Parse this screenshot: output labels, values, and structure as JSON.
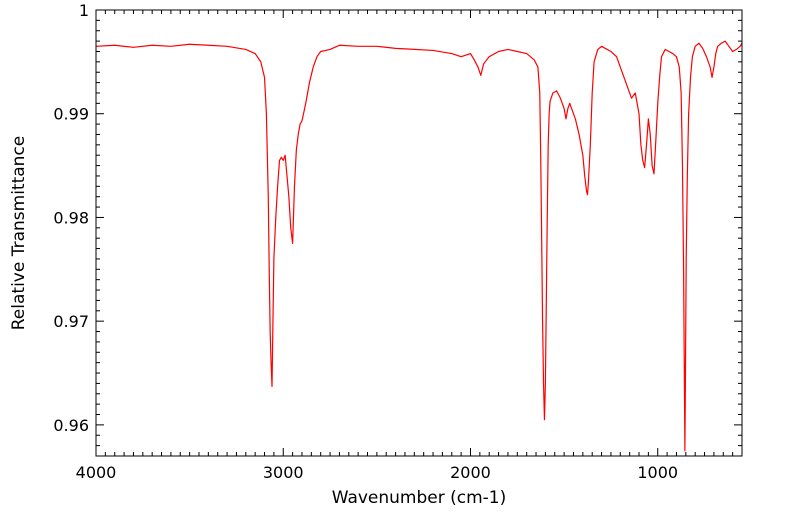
{
  "chart_data": {
    "type": "line",
    "title": "",
    "xlabel": "Wavenumber (cm-1)",
    "ylabel": "Relative Transmittance",
    "xlim": [
      4000,
      550
    ],
    "ylim": [
      0.957,
      1.0
    ],
    "x_reversed": true,
    "grid": false,
    "legend": "none",
    "line_color": "#ff0000",
    "x_ticks": [
      {
        "value": 4000,
        "label": "4000"
      },
      {
        "value": 3000,
        "label": "3000"
      },
      {
        "value": 2000,
        "label": "2000"
      },
      {
        "value": 1000,
        "label": "1000"
      }
    ],
    "y_ticks": [
      {
        "value": 1.0,
        "label": "1"
      },
      {
        "value": 0.99,
        "label": "0.99"
      },
      {
        "value": 0.98,
        "label": "0.98"
      },
      {
        "value": 0.97,
        "label": "0.97"
      },
      {
        "value": 0.96,
        "label": "0.96"
      }
    ],
    "series": [
      {
        "color": "#ff0000",
        "points": [
          [
            4000,
            0.9965
          ],
          [
            3900,
            0.9966
          ],
          [
            3800,
            0.9964
          ],
          [
            3700,
            0.9966
          ],
          [
            3600,
            0.9965
          ],
          [
            3500,
            0.9967
          ],
          [
            3400,
            0.9966
          ],
          [
            3300,
            0.9965
          ],
          [
            3200,
            0.9962
          ],
          [
            3150,
            0.9958
          ],
          [
            3120,
            0.995
          ],
          [
            3100,
            0.9935
          ],
          [
            3090,
            0.99
          ],
          [
            3080,
            0.982
          ],
          [
            3075,
            0.975
          ],
          [
            3070,
            0.969
          ],
          [
            3065,
            0.966
          ],
          [
            3060,
            0.9637
          ],
          [
            3055,
            0.97
          ],
          [
            3050,
            0.976
          ],
          [
            3040,
            0.98
          ],
          [
            3030,
            0.983
          ],
          [
            3020,
            0.9855
          ],
          [
            3010,
            0.9858
          ],
          [
            3000,
            0.9855
          ],
          [
            2990,
            0.986
          ],
          [
            2980,
            0.984
          ],
          [
            2970,
            0.982
          ],
          [
            2960,
            0.979
          ],
          [
            2950,
            0.9775
          ],
          [
            2940,
            0.983
          ],
          [
            2930,
            0.9865
          ],
          [
            2920,
            0.988
          ],
          [
            2910,
            0.989
          ],
          [
            2900,
            0.9893
          ],
          [
            2880,
            0.991
          ],
          [
            2860,
            0.993
          ],
          [
            2840,
            0.9945
          ],
          [
            2820,
            0.9955
          ],
          [
            2800,
            0.996
          ],
          [
            2750,
            0.9962
          ],
          [
            2700,
            0.9966
          ],
          [
            2600,
            0.9965
          ],
          [
            2500,
            0.9965
          ],
          [
            2400,
            0.9963
          ],
          [
            2300,
            0.9962
          ],
          [
            2200,
            0.9961
          ],
          [
            2100,
            0.9958
          ],
          [
            2050,
            0.9955
          ],
          [
            2000,
            0.9958
          ],
          [
            1980,
            0.9952
          ],
          [
            1960,
            0.9945
          ],
          [
            1945,
            0.9937
          ],
          [
            1930,
            0.9948
          ],
          [
            1900,
            0.9955
          ],
          [
            1850,
            0.996
          ],
          [
            1800,
            0.9962
          ],
          [
            1750,
            0.996
          ],
          [
            1700,
            0.9958
          ],
          [
            1660,
            0.9952
          ],
          [
            1640,
            0.9945
          ],
          [
            1630,
            0.992
          ],
          [
            1625,
            0.986
          ],
          [
            1620,
            0.978
          ],
          [
            1615,
            0.97
          ],
          [
            1610,
            0.964
          ],
          [
            1605,
            0.9605
          ],
          [
            1600,
            0.964
          ],
          [
            1595,
            0.972
          ],
          [
            1590,
            0.98
          ],
          [
            1585,
            0.987
          ],
          [
            1580,
            0.99
          ],
          [
            1575,
            0.9912
          ],
          [
            1560,
            0.992
          ],
          [
            1540,
            0.9922
          ],
          [
            1520,
            0.9915
          ],
          [
            1500,
            0.9905
          ],
          [
            1490,
            0.9895
          ],
          [
            1480,
            0.9905
          ],
          [
            1470,
            0.991
          ],
          [
            1460,
            0.9905
          ],
          [
            1440,
            0.9895
          ],
          [
            1420,
            0.988
          ],
          [
            1400,
            0.986
          ],
          [
            1390,
            0.984
          ],
          [
            1380,
            0.9825
          ],
          [
            1375,
            0.9822
          ],
          [
            1370,
            0.9835
          ],
          [
            1360,
            0.987
          ],
          [
            1350,
            0.992
          ],
          [
            1340,
            0.995
          ],
          [
            1320,
            0.9962
          ],
          [
            1300,
            0.9965
          ],
          [
            1250,
            0.996
          ],
          [
            1220,
            0.9955
          ],
          [
            1200,
            0.9945
          ],
          [
            1180,
            0.9935
          ],
          [
            1160,
            0.9925
          ],
          [
            1140,
            0.9915
          ],
          [
            1120,
            0.992
          ],
          [
            1100,
            0.99
          ],
          [
            1090,
            0.987
          ],
          [
            1080,
            0.9855
          ],
          [
            1070,
            0.9848
          ],
          [
            1060,
            0.987
          ],
          [
            1050,
            0.9895
          ],
          [
            1040,
            0.988
          ],
          [
            1030,
            0.985
          ],
          [
            1020,
            0.9842
          ],
          [
            1010,
            0.9875
          ],
          [
            1000,
            0.991
          ],
          [
            990,
            0.9935
          ],
          [
            980,
            0.9955
          ],
          [
            960,
            0.9962
          ],
          [
            940,
            0.996
          ],
          [
            920,
            0.9958
          ],
          [
            900,
            0.9955
          ],
          [
            885,
            0.9945
          ],
          [
            875,
            0.992
          ],
          [
            868,
            0.985
          ],
          [
            862,
            0.975
          ],
          [
            858,
            0.965
          ],
          [
            855,
            0.9575
          ],
          [
            852,
            0.965
          ],
          [
            848,
            0.976
          ],
          [
            842,
            0.984
          ],
          [
            835,
            0.99
          ],
          [
            825,
            0.9935
          ],
          [
            815,
            0.9955
          ],
          [
            800,
            0.9965
          ],
          [
            780,
            0.9968
          ],
          [
            760,
            0.9963
          ],
          [
            740,
            0.9955
          ],
          [
            720,
            0.9945
          ],
          [
            710,
            0.9935
          ],
          [
            700,
            0.9945
          ],
          [
            690,
            0.9958
          ],
          [
            680,
            0.9965
          ],
          [
            660,
            0.9968
          ],
          [
            640,
            0.997
          ],
          [
            620,
            0.9965
          ],
          [
            600,
            0.996
          ],
          [
            580,
            0.9962
          ],
          [
            560,
            0.9965
          ],
          [
            550,
            0.9968
          ]
        ]
      }
    ]
  }
}
